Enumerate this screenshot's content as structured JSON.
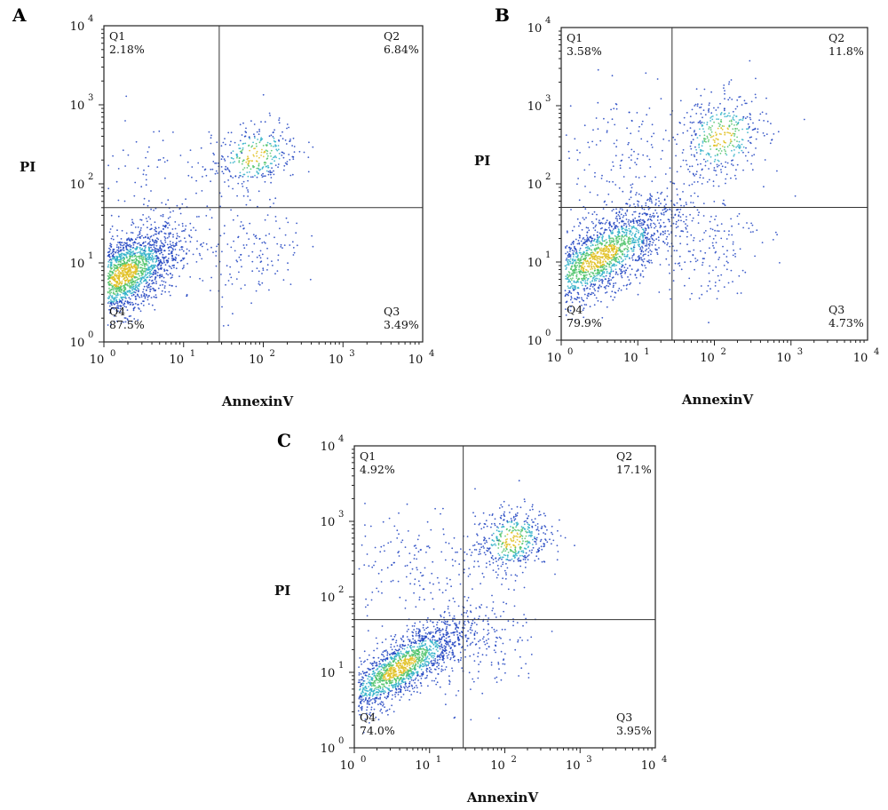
{
  "chart_data": [
    {
      "type": "scatter",
      "panel": "A",
      "xlabel": "AnnexinV",
      "ylabel": "PI",
      "xscale": "log",
      "yscale": "log",
      "xlim": [
        1,
        10000
      ],
      "ylim": [
        1,
        10000
      ],
      "x_ticks": [
        {
          "base": "10",
          "exp": "0"
        },
        {
          "base": "10",
          "exp": "1"
        },
        {
          "base": "10",
          "exp": "2"
        },
        {
          "base": "10",
          "exp": "3"
        },
        {
          "base": "10",
          "exp": "4"
        }
      ],
      "y_ticks": [
        {
          "base": "10",
          "exp": "0"
        },
        {
          "base": "10",
          "exp": "1"
        },
        {
          "base": "10",
          "exp": "2"
        },
        {
          "base": "10",
          "exp": "3"
        },
        {
          "base": "10",
          "exp": "4"
        }
      ],
      "gate": {
        "x": 28,
        "y": 50
      },
      "quadrants": [
        {
          "name": "Q1",
          "value": "2.18%"
        },
        {
          "name": "Q2",
          "value": "6.84%"
        },
        {
          "name": "Q3",
          "value": "3.49%"
        },
        {
          "name": "Q4",
          "value": "87.5%"
        }
      ]
    },
    {
      "type": "scatter",
      "panel": "B",
      "xlabel": "AnnexinV",
      "ylabel": "PI",
      "xscale": "log",
      "yscale": "log",
      "xlim": [
        1,
        10000
      ],
      "ylim": [
        1,
        10000
      ],
      "x_ticks": [
        {
          "base": "10",
          "exp": "0"
        },
        {
          "base": "10",
          "exp": "1"
        },
        {
          "base": "10",
          "exp": "2"
        },
        {
          "base": "10",
          "exp": "3"
        },
        {
          "base": "10",
          "exp": "4"
        }
      ],
      "y_ticks": [
        {
          "base": "10",
          "exp": "0"
        },
        {
          "base": "10",
          "exp": "1"
        },
        {
          "base": "10",
          "exp": "2"
        },
        {
          "base": "10",
          "exp": "3"
        },
        {
          "base": "10",
          "exp": "4"
        }
      ],
      "gate": {
        "x": 28,
        "y": 50
      },
      "quadrants": [
        {
          "name": "Q1",
          "value": "3.58%"
        },
        {
          "name": "Q2",
          "value": "11.8%"
        },
        {
          "name": "Q3",
          "value": "4.73%"
        },
        {
          "name": "Q4",
          "value": "79.9%"
        }
      ]
    },
    {
      "type": "scatter",
      "panel": "C",
      "xlabel": "AnnexinV",
      "ylabel": "PI",
      "xscale": "log",
      "yscale": "log",
      "xlim": [
        1,
        10000
      ],
      "ylim": [
        1,
        10000
      ],
      "x_ticks": [
        {
          "base": "10",
          "exp": "0"
        },
        {
          "base": "10",
          "exp": "1"
        },
        {
          "base": "10",
          "exp": "2"
        },
        {
          "base": "10",
          "exp": "3"
        },
        {
          "base": "10",
          "exp": "4"
        }
      ],
      "y_ticks": [
        {
          "base": "10",
          "exp": "0"
        },
        {
          "base": "10",
          "exp": "1"
        },
        {
          "base": "10",
          "exp": "2"
        },
        {
          "base": "10",
          "exp": "3"
        },
        {
          "base": "10",
          "exp": "4"
        }
      ],
      "gate": {
        "x": 28,
        "y": 50
      },
      "quadrants": [
        {
          "name": "Q1",
          "value": "4.92%"
        },
        {
          "name": "Q2",
          "value": "17.1%"
        },
        {
          "name": "Q3",
          "value": "3.95%"
        },
        {
          "name": "Q4",
          "value": "74.0%"
        }
      ]
    }
  ],
  "colors": {
    "sparse": "#1b3fc0",
    "dense": "#2fb0c8",
    "denser": "#4fc36a",
    "densest": "#e0c020",
    "axis": "#222222",
    "gate": "#333333"
  }
}
